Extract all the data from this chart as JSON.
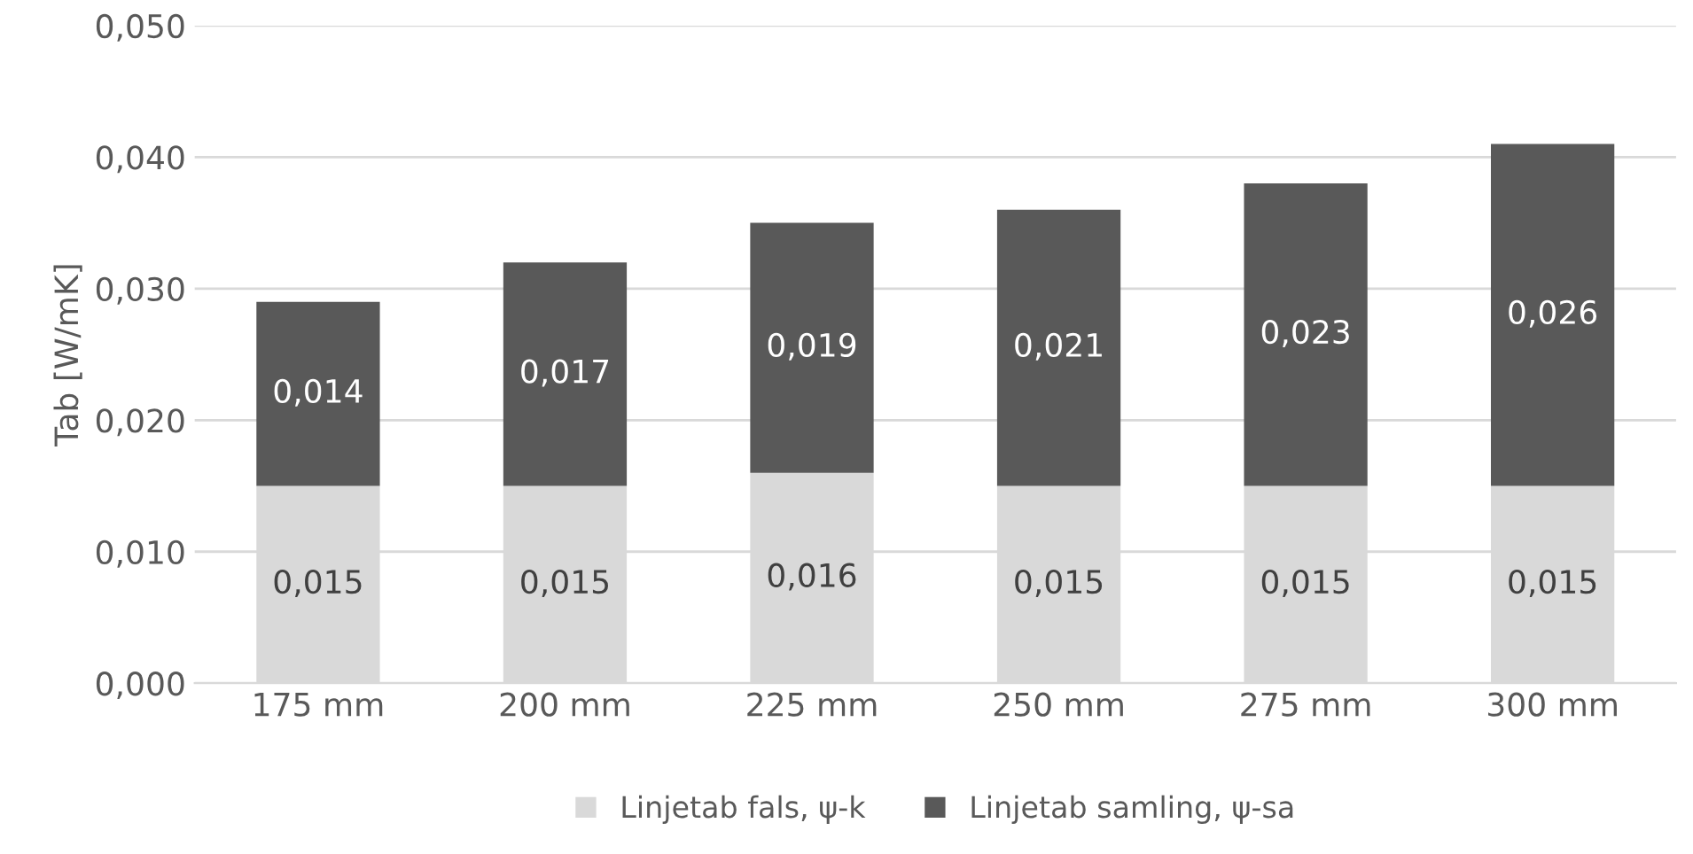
{
  "chart_data": {
    "type": "bar",
    "stacked": true,
    "ylabel": "Tab [W/mK]",
    "categories": [
      "175 mm",
      "200 mm",
      "225 mm",
      "250 mm",
      "275 mm",
      "300 mm"
    ],
    "series": [
      {
        "name": "Linjetab fals, ψ-k",
        "color": "#d9d9d9",
        "values": [
          0.015,
          0.015,
          0.016,
          0.015,
          0.015,
          0.015
        ],
        "value_labels": [
          "0,015",
          "0,015",
          "0,016",
          "0,015",
          "0,015",
          "0,015"
        ]
      },
      {
        "name": "Linjetab samling, ψ-sa",
        "color": "#595959",
        "values": [
          0.014,
          0.017,
          0.019,
          0.021,
          0.023,
          0.026
        ],
        "value_labels": [
          "0,014",
          "0,017",
          "0,019",
          "0,021",
          "0,023",
          "0,026"
        ]
      }
    ],
    "ylim": [
      0,
      0.05
    ],
    "yticks": [
      {
        "value": 0,
        "label": "0,000"
      },
      {
        "value": 0.01,
        "label": "0,010"
      },
      {
        "value": 0.02,
        "label": "0,020"
      },
      {
        "value": 0.03,
        "label": "0,030"
      },
      {
        "value": 0.04,
        "label": "0,040"
      },
      {
        "value": 0.05,
        "label": "0,050"
      }
    ],
    "grid": "y",
    "legend": "bottom"
  }
}
